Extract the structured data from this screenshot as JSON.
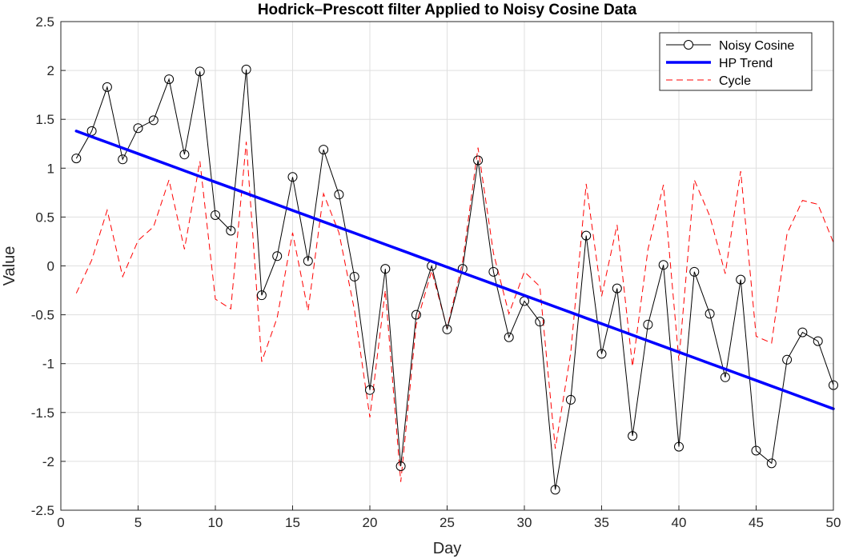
{
  "chart_data": {
    "type": "line",
    "title": "Hodrick–Prescott filter Applied to Noisy Cosine Data",
    "xlabel": "Day",
    "ylabel": "Value",
    "xlim": [
      0,
      50
    ],
    "ylim": [
      -2.5,
      2.5
    ],
    "xticks": [
      0,
      5,
      10,
      15,
      20,
      25,
      30,
      35,
      40,
      45,
      50
    ],
    "yticks": [
      -2.5,
      -2,
      -1.5,
      -1,
      -0.5,
      0,
      0.5,
      1,
      1.5,
      2,
      2.5
    ],
    "xtick_labels": [
      "0",
      "5",
      "10",
      "15",
      "20",
      "25",
      "30",
      "35",
      "40",
      "45",
      "50"
    ],
    "ytick_labels": [
      "-2.5",
      "-2",
      "-1.5",
      "-1",
      "-0.5",
      "0",
      "0.5",
      "1",
      "1.5",
      "2",
      "2.5"
    ],
    "grid": true,
    "legend_position": "top-right",
    "x": [
      1,
      2,
      3,
      4,
      5,
      6,
      7,
      8,
      9,
      10,
      11,
      12,
      13,
      14,
      15,
      16,
      17,
      18,
      19,
      20,
      21,
      22,
      23,
      24,
      25,
      26,
      27,
      28,
      29,
      30,
      31,
      32,
      33,
      34,
      35,
      36,
      37,
      38,
      39,
      40,
      41,
      42,
      43,
      44,
      45,
      46,
      47,
      48,
      49,
      50
    ],
    "series": [
      {
        "name": "Noisy Cosine",
        "color": "#000000",
        "style": "solid-line-circle-markers",
        "values": [
          1.1,
          1.38,
          1.83,
          1.09,
          1.41,
          1.49,
          1.91,
          1.14,
          1.99,
          0.52,
          0.36,
          2.01,
          -0.3,
          0.1,
          0.91,
          0.05,
          1.19,
          0.73,
          -0.11,
          -1.27,
          -0.03,
          -2.05,
          -0.5,
          0.0,
          -0.65,
          -0.03,
          1.08,
          -0.06,
          -0.73,
          -0.36,
          -0.57,
          -2.29,
          -1.37,
          0.31,
          -0.9,
          -0.23,
          -1.74,
          -0.6,
          0.01,
          -1.85,
          -0.06,
          -0.49,
          -1.14,
          -0.14,
          -1.89,
          -2.02,
          -0.96,
          -0.68,
          -0.77,
          -1.22
        ]
      },
      {
        "name": "HP Trend",
        "color": "#0000ff",
        "style": "thick-solid-line",
        "values": [
          1.38,
          1.322,
          1.264,
          1.206,
          1.148,
          1.09,
          1.032,
          0.974,
          0.916,
          0.858,
          0.8,
          0.742,
          0.684,
          0.626,
          0.568,
          0.51,
          0.452,
          0.394,
          0.336,
          0.278,
          0.22,
          0.162,
          0.104,
          0.046,
          -0.012,
          -0.07,
          -0.128,
          -0.186,
          -0.244,
          -0.302,
          -0.36,
          -0.418,
          -0.476,
          -0.534,
          -0.592,
          -0.65,
          -0.708,
          -0.766,
          -0.824,
          -0.882,
          -0.94,
          -0.998,
          -1.056,
          -1.114,
          -1.172,
          -1.23,
          -1.288,
          -1.346,
          -1.404,
          -1.462
        ]
      },
      {
        "name": "Cycle",
        "color": "#ff0000",
        "style": "dashed-line",
        "values": [
          -0.28,
          0.06,
          0.57,
          -0.11,
          0.26,
          0.4,
          0.88,
          0.17,
          1.07,
          -0.34,
          -0.44,
          1.27,
          -0.98,
          -0.53,
          0.34,
          -0.46,
          0.74,
          0.34,
          -0.45,
          -1.55,
          -0.25,
          -2.21,
          -0.6,
          -0.05,
          -0.64,
          0.04,
          1.21,
          0.13,
          -0.49,
          -0.06,
          -0.21,
          -1.87,
          -0.89,
          0.84,
          -0.31,
          0.42,
          -1.03,
          0.17,
          0.83,
          -0.97,
          0.88,
          0.51,
          -0.08,
          0.97,
          -0.72,
          -0.79,
          0.33,
          0.67,
          0.63,
          0.24
        ]
      }
    ]
  }
}
